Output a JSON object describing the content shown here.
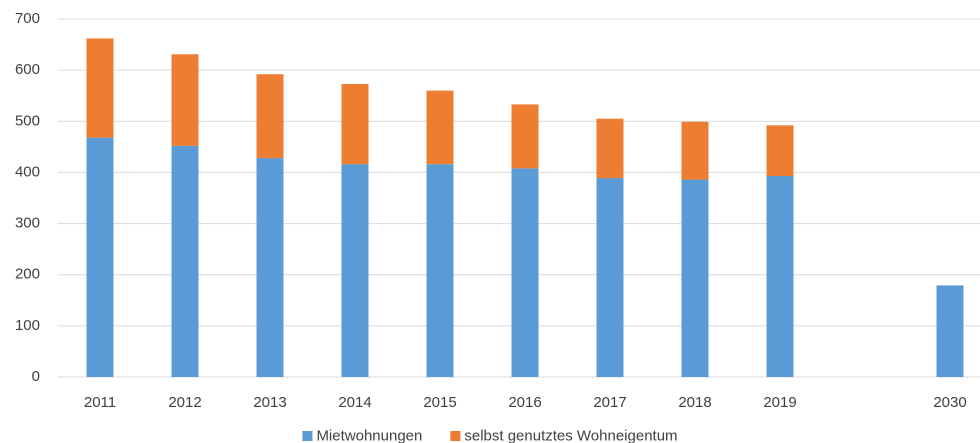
{
  "chart_data": {
    "type": "stacked_bar",
    "categories": [
      "2011",
      "2012",
      "2013",
      "2014",
      "2015",
      "2016",
      "2017",
      "2018",
      "2019",
      null,
      "2030"
    ],
    "series": [
      {
        "name": "Mietwohnungen",
        "color": "#5b9bd5",
        "values": [
          468,
          452,
          428,
          416,
          416,
          408,
          389,
          386,
          393,
          null,
          179
        ]
      },
      {
        "name": "selbst genutztes Wohneigentum",
        "color": "#ed7d31",
        "values": [
          194,
          179,
          164,
          157,
          144,
          125,
          116,
          113,
          99,
          null,
          null
        ]
      }
    ],
    "ylim": [
      0,
      700
    ],
    "yticks": [
      0,
      100,
      200,
      300,
      400,
      500,
      600,
      700
    ],
    "grid": true
  }
}
